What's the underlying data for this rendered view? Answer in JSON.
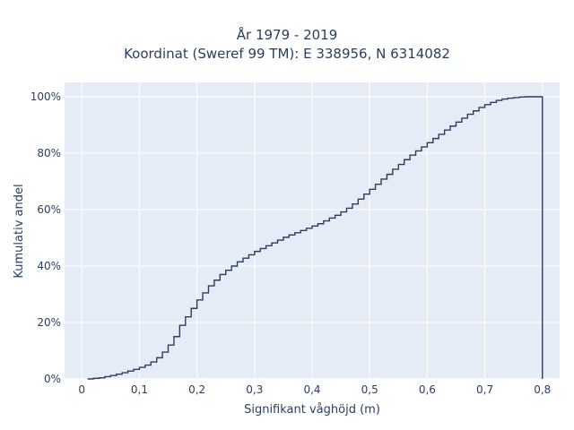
{
  "chart_data": {
    "type": "line",
    "title_line1": "År 1979 - 2019",
    "title_line2": "Koordinat (Sweref 99 TM): E 338956, N 6314082",
    "xlabel": "Signifikant våghöjd (m)",
    "ylabel": "Kumulativ andel",
    "xlim": [
      -0.03,
      0.83
    ],
    "ylim": [
      0,
      1.0
    ],
    "x_ticks": [
      {
        "value": 0,
        "label": "0"
      },
      {
        "value": 0.1,
        "label": "0,1"
      },
      {
        "value": 0.2,
        "label": "0,2"
      },
      {
        "value": 0.3,
        "label": "0,3"
      },
      {
        "value": 0.4,
        "label": "0,4"
      },
      {
        "value": 0.5,
        "label": "0,5"
      },
      {
        "value": 0.6,
        "label": "0,6"
      },
      {
        "value": 0.7,
        "label": "0,7"
      },
      {
        "value": 0.8,
        "label": "0,8"
      }
    ],
    "y_ticks": [
      {
        "value": 0,
        "label": "0%"
      },
      {
        "value": 0.2,
        "label": "20%"
      },
      {
        "value": 0.4,
        "label": "40%"
      },
      {
        "value": 0.6,
        "label": "60%"
      },
      {
        "value": 0.8,
        "label": "80%"
      },
      {
        "value": 1.0,
        "label": "100%"
      }
    ],
    "grid": true,
    "line_shape": "step",
    "series": [
      {
        "color": "#2a3f5f",
        "x": [
          0.01,
          0.02,
          0.03,
          0.04,
          0.05,
          0.06,
          0.07,
          0.08,
          0.09,
          0.1,
          0.11,
          0.12,
          0.13,
          0.14,
          0.15,
          0.16,
          0.17,
          0.18,
          0.19,
          0.2,
          0.21,
          0.22,
          0.23,
          0.24,
          0.25,
          0.26,
          0.27,
          0.28,
          0.29,
          0.3,
          0.31,
          0.32,
          0.33,
          0.34,
          0.35,
          0.36,
          0.37,
          0.38,
          0.39,
          0.4,
          0.41,
          0.42,
          0.43,
          0.44,
          0.45,
          0.46,
          0.47,
          0.48,
          0.49,
          0.5,
          0.51,
          0.52,
          0.53,
          0.54,
          0.55,
          0.56,
          0.57,
          0.58,
          0.59,
          0.6,
          0.61,
          0.62,
          0.63,
          0.64,
          0.65,
          0.66,
          0.67,
          0.68,
          0.69,
          0.7,
          0.71,
          0.72,
          0.73,
          0.74,
          0.75,
          0.76,
          0.77,
          0.78,
          0.79,
          0.8,
          0.8
        ],
        "y": [
          0.0,
          0.002,
          0.004,
          0.008,
          0.012,
          0.017,
          0.022,
          0.028,
          0.034,
          0.041,
          0.049,
          0.06,
          0.075,
          0.095,
          0.12,
          0.15,
          0.19,
          0.22,
          0.25,
          0.28,
          0.305,
          0.33,
          0.35,
          0.37,
          0.385,
          0.4,
          0.415,
          0.428,
          0.44,
          0.452,
          0.462,
          0.472,
          0.482,
          0.492,
          0.502,
          0.51,
          0.518,
          0.526,
          0.534,
          0.542,
          0.55,
          0.56,
          0.57,
          0.58,
          0.592,
          0.605,
          0.62,
          0.637,
          0.655,
          0.672,
          0.69,
          0.708,
          0.725,
          0.743,
          0.76,
          0.777,
          0.793,
          0.808,
          0.822,
          0.837,
          0.852,
          0.867,
          0.882,
          0.896,
          0.91,
          0.924,
          0.938,
          0.95,
          0.962,
          0.972,
          0.98,
          0.987,
          0.992,
          0.995,
          0.997,
          0.999,
          1.0,
          1.0,
          1.0,
          1.0,
          0.0
        ]
      }
    ]
  }
}
